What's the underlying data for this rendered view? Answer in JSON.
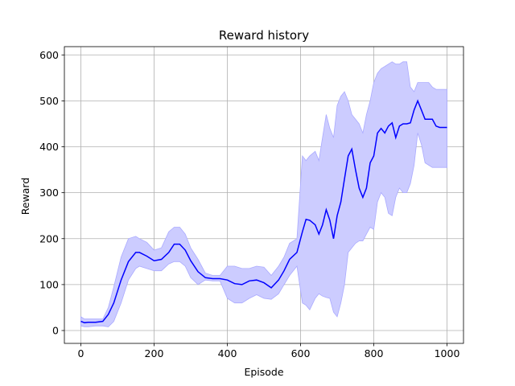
{
  "chart_data": {
    "type": "line",
    "title": "Reward history",
    "xlabel": "Episode",
    "ylabel": "Reward",
    "xlim": [
      -45,
      1045
    ],
    "ylim": [
      -28,
      618
    ],
    "xticks": [
      0,
      200,
      400,
      600,
      800,
      1000
    ],
    "yticks": [
      0,
      100,
      200,
      300,
      400,
      500,
      600
    ],
    "grid": true,
    "line_color": "#0000ff",
    "band_color": "#ccccff",
    "band_edge_color": "#aaaaff",
    "series": [
      {
        "x": [
          0,
          10,
          20,
          40,
          60,
          75,
          90,
          110,
          130,
          150,
          160,
          180,
          200,
          220,
          240,
          255,
          270,
          285,
          300,
          320,
          340,
          360,
          380,
          400,
          420,
          440,
          460,
          480,
          500,
          520,
          540,
          555,
          570,
          590,
          605,
          615,
          625,
          640,
          650,
          660,
          670,
          680,
          690,
          700,
          710,
          720,
          730,
          740,
          750,
          760,
          770,
          780,
          790,
          800,
          810,
          820,
          830,
          840,
          850,
          860,
          870,
          880,
          890,
          900,
          910,
          920,
          930,
          940,
          950,
          960,
          970,
          980,
          990,
          1000
        ],
        "mean": [
          20,
          17,
          18,
          18,
          20,
          35,
          60,
          110,
          150,
          170,
          170,
          162,
          152,
          155,
          170,
          188,
          188,
          175,
          152,
          128,
          115,
          113,
          113,
          110,
          102,
          100,
          108,
          110,
          104,
          93,
          110,
          130,
          155,
          170,
          215,
          242,
          240,
          230,
          210,
          230,
          263,
          240,
          200,
          250,
          280,
          330,
          380,
          395,
          350,
          310,
          290,
          310,
          365,
          380,
          430,
          440,
          430,
          445,
          452,
          420,
          445,
          450,
          450,
          452,
          480,
          500,
          480,
          460,
          460,
          460,
          445,
          442,
          442,
          442
        ],
        "lower": [
          10,
          8,
          8,
          10,
          10,
          8,
          20,
          60,
          110,
          135,
          140,
          135,
          130,
          130,
          145,
          150,
          150,
          140,
          115,
          100,
          110,
          108,
          108,
          70,
          60,
          60,
          70,
          78,
          70,
          68,
          80,
          100,
          120,
          140,
          60,
          55,
          45,
          70,
          80,
          75,
          72,
          70,
          40,
          30,
          60,
          100,
          170,
          180,
          190,
          195,
          195,
          210,
          225,
          220,
          280,
          300,
          290,
          255,
          250,
          290,
          310,
          300,
          300,
          320,
          360,
          430,
          405,
          365,
          360,
          355,
          355,
          355,
          355,
          355
        ],
        "upper": [
          30,
          25,
          25,
          25,
          25,
          50,
          95,
          160,
          200,
          205,
          200,
          192,
          175,
          180,
          215,
          225,
          225,
          210,
          180,
          155,
          125,
          120,
          120,
          140,
          140,
          135,
          135,
          140,
          138,
          120,
          140,
          160,
          190,
          200,
          380,
          370,
          380,
          390,
          370,
          420,
          470,
          440,
          420,
          490,
          510,
          520,
          500,
          470,
          460,
          450,
          430,
          470,
          500,
          540,
          560,
          570,
          575,
          580,
          585,
          580,
          580,
          585,
          585,
          530,
          520,
          540,
          540,
          540,
          540,
          530,
          525,
          525,
          525,
          525
        ]
      }
    ]
  }
}
